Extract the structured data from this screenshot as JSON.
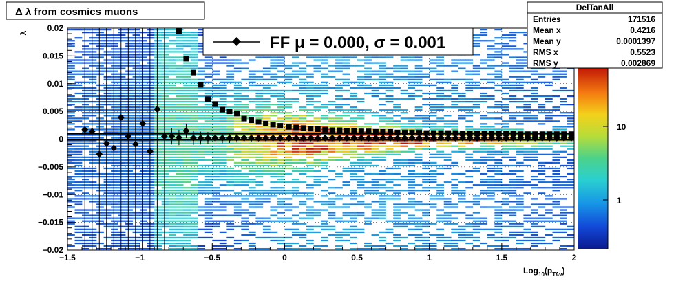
{
  "title": "Δ λ from cosmics muons",
  "legend": {
    "entry_label": "FF μ =  0.000, σ =   0.001"
  },
  "stats": {
    "name": "DelTanAll",
    "rows": [
      {
        "label": "Entries",
        "value": "171516"
      },
      {
        "label": "Mean x",
        "value": "0.4216"
      },
      {
        "label": "Mean y",
        "value": "0.0001397"
      },
      {
        "label": "RMS x",
        "value": "0.5523"
      },
      {
        "label": "RMS y",
        "value": "0.002869"
      }
    ]
  },
  "palette": {
    "labels": [
      "10",
      "1"
    ]
  },
  "chart_data": {
    "type": "heatmap",
    "xlabel": "Log10(pTAv)",
    "xlabel_main": "Log",
    "xlabel_sub1": "10",
    "xlabel_mid": "(p",
    "xlabel_sub2": "TAv",
    "xlabel_end": ")",
    "ylabel": "λ",
    "xlim": [
      -1.5,
      2.0
    ],
    "ylim": [
      -0.02,
      0.02
    ],
    "z_scale": "log",
    "grid": true,
    "x_ticks": [
      "−1.5",
      "−1",
      "−0.5",
      "0",
      "0.5",
      "1",
      "1.5",
      "2"
    ],
    "y_ticks": [
      "0.02",
      "0.015",
      "0.01",
      "0.005",
      "0",
      "−0.005",
      "−0.01",
      "−0.015",
      "−0.02"
    ],
    "x_tick_values": [
      -1.5,
      -1,
      -0.5,
      0,
      0.5,
      1,
      1.5,
      2
    ],
    "y_tick_values": [
      0.02,
      0.015,
      0.01,
      0.005,
      0,
      -0.005,
      -0.01,
      -0.015,
      -0.02
    ],
    "fit_lines_y": [
      0.001,
      -0.0001
    ],
    "series": [
      {
        "name": "mean (diamonds)",
        "marker": "diamond",
        "x": [
          -1.38,
          -1.33,
          -1.28,
          -1.23,
          -1.18,
          -1.13,
          -1.08,
          -1.03,
          -0.98,
          -0.93,
          -0.88,
          -0.83,
          -0.78,
          -0.73,
          -0.68,
          -0.63,
          -0.58,
          -0.53,
          -0.48,
          -0.43,
          -0.38,
          -0.33,
          -0.28,
          -0.23,
          -0.18,
          -0.13,
          -0.08,
          -0.03,
          0.03,
          0.08,
          0.13,
          0.18,
          0.23,
          0.28,
          0.33,
          0.38,
          0.43,
          0.48,
          0.53,
          0.58,
          0.63,
          0.68,
          0.73,
          0.78,
          0.83,
          0.88,
          0.93,
          0.98,
          1.03,
          1.08,
          1.13,
          1.18,
          1.23,
          1.28,
          1.33,
          1.38,
          1.43,
          1.48,
          1.53,
          1.58,
          1.63,
          1.68,
          1.73,
          1.78,
          1.83,
          1.88,
          1.93,
          1.98
        ],
        "y": [
          0.0017,
          0.0014,
          -0.0027,
          -0.0008,
          -0.0016,
          0.0039,
          0.0005,
          -0.0009,
          0.0028,
          -0.0022,
          0.0054,
          0.0005,
          0.0005,
          0.0003,
          0.0015,
          0.0002,
          0.0002,
          0.0002,
          0.0002,
          0.0002,
          0.0002,
          0.0002,
          0.0002,
          0.0002,
          0.0002,
          0.0002,
          0.0002,
          0.0002,
          0.0002,
          0.0002,
          0.0002,
          0.0002,
          0.0002,
          0.0002,
          0.0002,
          0.0002,
          0.0002,
          0.0002,
          0.0002,
          0.0002,
          0.0002,
          0.0002,
          0.0002,
          0.0002,
          0.0002,
          0.0002,
          0.0002,
          0.0002,
          0.0002,
          0.0002,
          0.0002,
          0.0002,
          0.0002,
          0.0002,
          0.0002,
          0.0002,
          0.0002,
          0.0002,
          0.0002,
          0.0002,
          0.0002,
          0.0002,
          0.0002,
          0.0002,
          0.0002,
          0.0002,
          0.0002,
          0.0002
        ]
      },
      {
        "name": "RMS (squares)",
        "marker": "square",
        "x": [
          -0.73,
          -0.68,
          -0.63,
          -0.58,
          -0.53,
          -0.48,
          -0.43,
          -0.38,
          -0.33,
          -0.28,
          -0.23,
          -0.18,
          -0.13,
          -0.08,
          -0.03,
          0.03,
          0.08,
          0.13,
          0.18,
          0.23,
          0.28,
          0.33,
          0.38,
          0.43,
          0.48,
          0.53,
          0.58,
          0.63,
          0.68,
          0.73,
          0.78,
          0.83,
          0.88,
          0.93,
          0.98,
          1.03,
          1.08,
          1.13,
          1.18,
          1.23,
          1.28,
          1.33,
          1.38,
          1.43,
          1.48,
          1.53,
          1.58,
          1.63,
          1.68,
          1.73,
          1.78,
          1.83,
          1.88,
          1.93,
          1.98
        ],
        "y": [
          0.0195,
          0.0145,
          0.012,
          0.0098,
          0.0072,
          0.0063,
          0.0053,
          0.005,
          0.0046,
          0.0037,
          0.0034,
          0.0031,
          0.0028,
          0.0026,
          0.0024,
          0.0022,
          0.0021,
          0.002,
          0.0019,
          0.0018,
          0.0017,
          0.0016,
          0.0016,
          0.0015,
          0.0015,
          0.0014,
          0.0014,
          0.0013,
          0.0013,
          0.0013,
          0.0012,
          0.0012,
          0.0012,
          0.0012,
          0.0011,
          0.0011,
          0.0011,
          0.0011,
          0.0011,
          0.001,
          0.001,
          0.001,
          0.001,
          0.001,
          0.001,
          0.001,
          0.001,
          0.0009,
          0.0009,
          0.0009,
          0.0009,
          0.0009,
          0.0009,
          0.0009,
          0.0009
        ]
      }
    ]
  }
}
